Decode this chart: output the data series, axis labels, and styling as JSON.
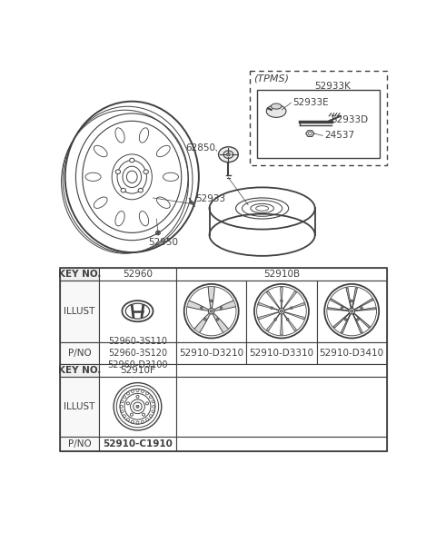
{
  "bg_color": "#ffffff",
  "line_color": "#404040",
  "labels": {
    "tpms_box": "(TPMS)",
    "52933K": "52933K",
    "52933E": "52933E",
    "52933D": "52933D",
    "24537": "24537",
    "62850": "62850",
    "52933": "52933",
    "52950": "52950"
  },
  "table": {
    "key_no_label": "KEY NO.",
    "col1_key": "52960",
    "col2_key": "52910B",
    "col3_key": "52910F",
    "illust_label": "ILLUST",
    "pno_label": "P/NO",
    "col1_pno": "52960-3S110\n52960-3S120\n52960-D3100",
    "col2_pno1": "52910-D3210",
    "col2_pno2": "52910-D3310",
    "col2_pno3": "52910-D3410",
    "col3_pno": "52910-C1910"
  }
}
